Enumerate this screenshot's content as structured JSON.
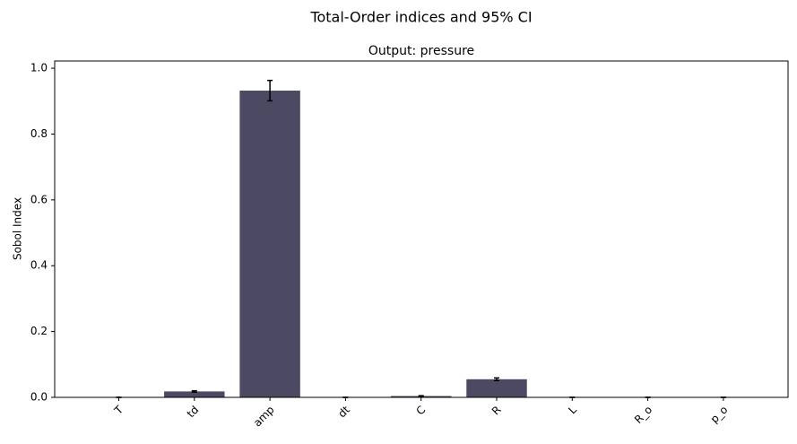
{
  "chart_data": {
    "type": "bar",
    "suptitle": "Total-Order indices and 95% CI",
    "title": "Output: pressure",
    "ylabel": "Sobol Index",
    "categories": [
      "T",
      "td",
      "amp",
      "dt",
      "C",
      "R",
      "L",
      "R_o",
      "p_o"
    ],
    "values": [
      0,
      0.018,
      0.932,
      0,
      0.004,
      0.055,
      0,
      0,
      0
    ],
    "errors": [
      0,
      0.002,
      0.031,
      0,
      0.001,
      0.004,
      0,
      0,
      0
    ],
    "color": "#4b4a62",
    "ylim": [
      0,
      1.022
    ],
    "yticks": [
      {
        "value": 0,
        "label": "0.0"
      },
      0.2,
      0.4,
      0.6,
      0.8,
      {
        "value": 1,
        "label": "1.0"
      }
    ],
    "grid": false
  }
}
